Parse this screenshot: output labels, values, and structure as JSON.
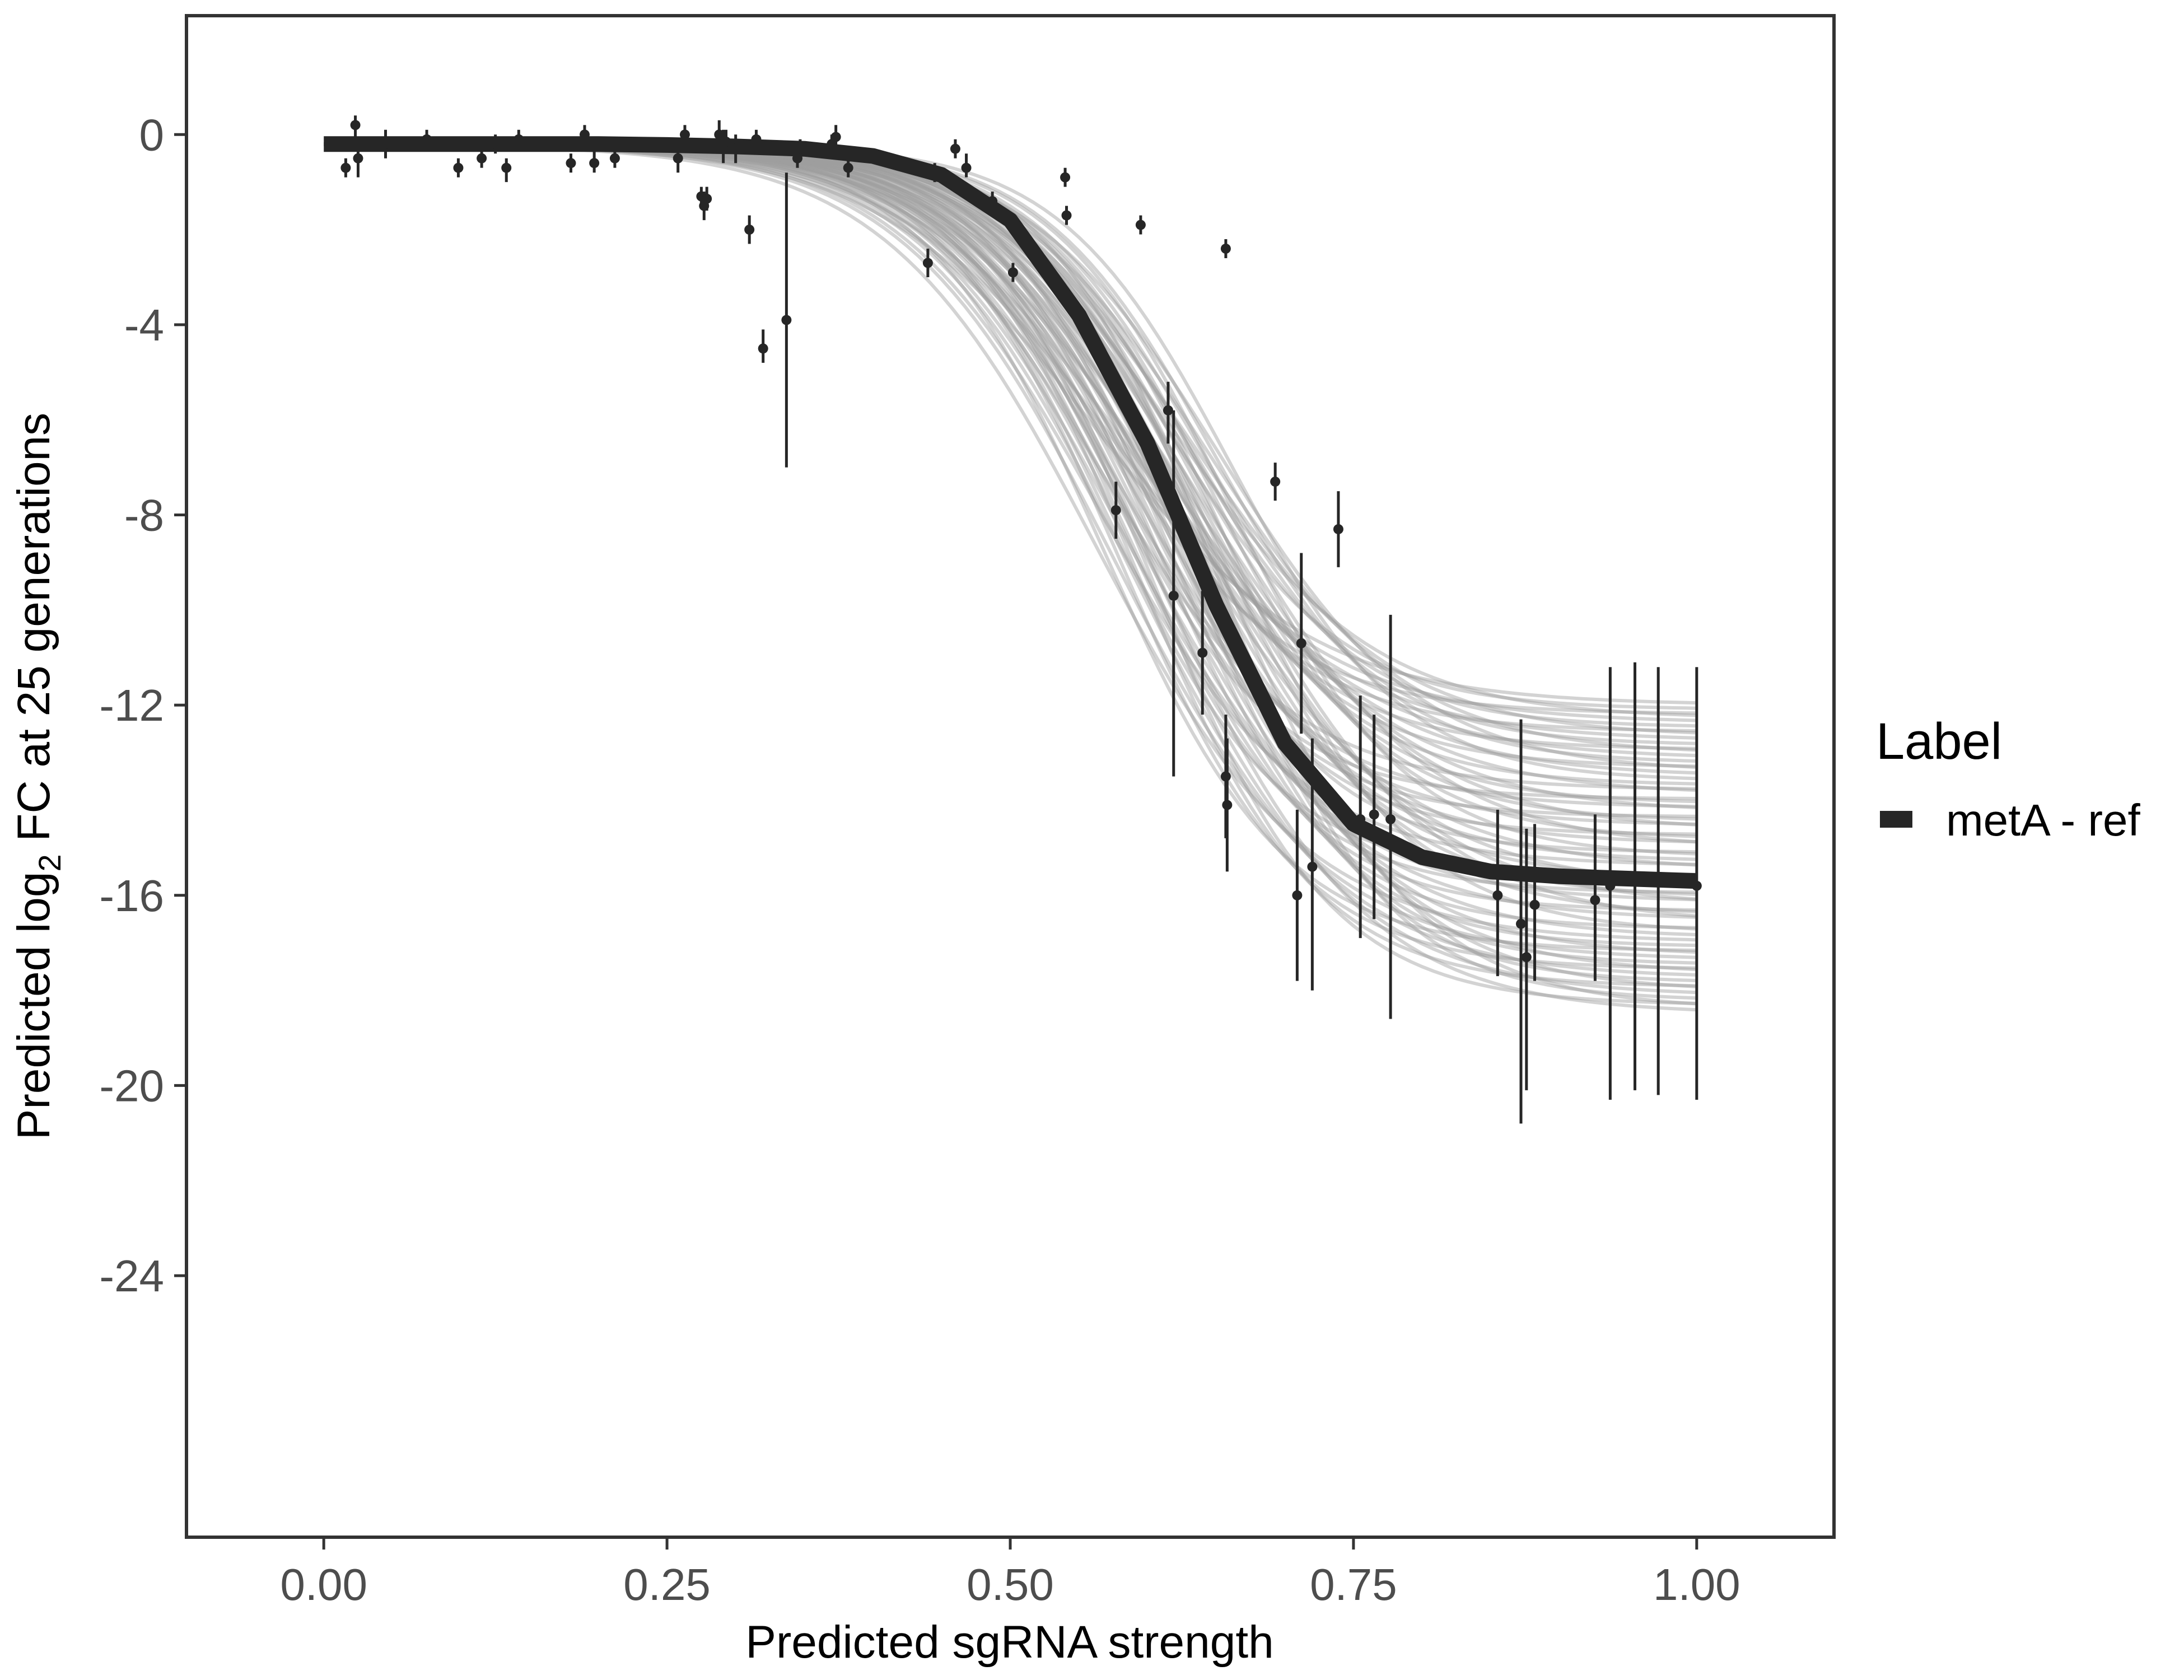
{
  "chart_data": {
    "type": "line",
    "title": "",
    "xlabel": "Predicted sgRNA strength",
    "ylabel": {
      "prefix": "Predicted  log",
      "subscript": "2",
      "suffix": " FC at 25 generations"
    },
    "xlim": [
      -0.1,
      1.1
    ],
    "ylim": [
      -29.5,
      2.5
    ],
    "x_ticks": [
      0.0,
      0.25,
      0.5,
      0.75,
      1.0
    ],
    "x_tick_labels": [
      "0.00",
      "0.25",
      "0.50",
      "0.75",
      "1.00"
    ],
    "y_ticks": [
      0,
      -4,
      -8,
      -12,
      -16,
      -20,
      -24
    ],
    "y_tick_labels": [
      "0",
      "-4",
      "-8",
      "-12",
      "-16",
      "-20",
      "-24"
    ],
    "grid": false,
    "legend": {
      "title": "Label",
      "placement": "right",
      "entries": [
        {
          "label": "metA - ref",
          "color": "#262626"
        }
      ]
    },
    "colors": {
      "fit_line": "#262626",
      "posterior_draws": "#9e9e9e",
      "points": "#262626",
      "axis": "#333333"
    },
    "fit_curve": {
      "name": "metA - ref",
      "x": [
        0.0,
        0.05,
        0.1,
        0.15,
        0.2,
        0.25,
        0.3,
        0.35,
        0.4,
        0.45,
        0.5,
        0.55,
        0.6,
        0.65,
        0.7,
        0.75,
        0.8,
        0.85,
        0.9,
        0.95,
        1.0
      ],
      "y": [
        -0.2,
        -0.2,
        -0.2,
        -0.2,
        -0.2,
        -0.22,
        -0.25,
        -0.3,
        -0.45,
        -0.85,
        -1.8,
        -3.8,
        -6.5,
        -9.9,
        -12.8,
        -14.5,
        -15.2,
        -15.5,
        -15.6,
        -15.65,
        -15.7
      ]
    },
    "posterior_band": {
      "lower_end_y": [
        -0.2,
        -18.5
      ],
      "upper_end_y": [
        -0.2,
        -12.0
      ],
      "midpoint_range": [
        0.56,
        0.66
      ]
    },
    "points": [
      {
        "x": 0.016,
        "y": -0.7,
        "lo": -0.9,
        "hi": -0.5
      },
      {
        "x": 0.023,
        "y": 0.2,
        "lo": -0.1,
        "hi": 0.4
      },
      {
        "x": 0.025,
        "y": -0.5,
        "lo": -0.9,
        "hi": -0.2
      },
      {
        "x": 0.045,
        "y": -0.2,
        "lo": -0.5,
        "hi": 0.1
      },
      {
        "x": 0.075,
        "y": -0.1,
        "lo": -0.3,
        "hi": 0.1
      },
      {
        "x": 0.098,
        "y": -0.7,
        "lo": -0.9,
        "hi": -0.5
      },
      {
        "x": 0.115,
        "y": -0.5,
        "lo": -0.7,
        "hi": -0.3
      },
      {
        "x": 0.125,
        "y": -0.2,
        "lo": -0.4,
        "hi": 0.0
      },
      {
        "x": 0.133,
        "y": -0.7,
        "lo": -1.0,
        "hi": -0.5
      },
      {
        "x": 0.142,
        "y": -0.1,
        "lo": -0.3,
        "hi": 0.1
      },
      {
        "x": 0.18,
        "y": -0.6,
        "lo": -0.8,
        "hi": -0.4
      },
      {
        "x": 0.19,
        "y": 0.0,
        "lo": -0.2,
        "hi": 0.2
      },
      {
        "x": 0.197,
        "y": -0.6,
        "lo": -0.8,
        "hi": -0.3
      },
      {
        "x": 0.212,
        "y": -0.5,
        "lo": -0.7,
        "hi": -0.3
      },
      {
        "x": 0.258,
        "y": -0.5,
        "lo": -0.8,
        "hi": -0.2
      },
      {
        "x": 0.263,
        "y": 0.0,
        "lo": -0.2,
        "hi": 0.2
      },
      {
        "x": 0.275,
        "y": -1.3,
        "lo": -1.5,
        "hi": -1.1
      },
      {
        "x": 0.277,
        "y": -1.5,
        "lo": -1.8,
        "hi": -1.2
      },
      {
        "x": 0.279,
        "y": -1.35,
        "lo": -1.6,
        "hi": -1.1
      },
      {
        "x": 0.288,
        "y": 0.0,
        "lo": -0.3,
        "hi": 0.3
      },
      {
        "x": 0.291,
        "y": -0.2,
        "lo": -0.6,
        "hi": 0.1
      },
      {
        "x": 0.293,
        "y": -0.15,
        "lo": -0.4,
        "hi": 0.1
      },
      {
        "x": 0.3,
        "y": -0.3,
        "lo": -0.6,
        "hi": 0.0
      },
      {
        "x": 0.31,
        "y": -2.0,
        "lo": -2.3,
        "hi": -1.7
      },
      {
        "x": 0.315,
        "y": -0.1,
        "lo": -0.3,
        "hi": 0.1
      },
      {
        "x": 0.32,
        "y": -4.5,
        "lo": -4.8,
        "hi": -4.1
      },
      {
        "x": 0.337,
        "y": -3.9,
        "lo": -7.0,
        "hi": -0.8
      },
      {
        "x": 0.345,
        "y": -0.5,
        "lo": -0.7,
        "hi": -0.2
      },
      {
        "x": 0.347,
        "y": -0.3,
        "lo": -0.5,
        "hi": -0.1
      },
      {
        "x": 0.37,
        "y": -0.2,
        "lo": -0.4,
        "hi": 0.0
      },
      {
        "x": 0.373,
        "y": -0.05,
        "lo": -0.3,
        "hi": 0.2
      },
      {
        "x": 0.382,
        "y": -0.7,
        "lo": -0.9,
        "hi": -0.5
      },
      {
        "x": 0.44,
        "y": -2.7,
        "lo": -3.0,
        "hi": -2.4
      },
      {
        "x": 0.445,
        "y": -0.8,
        "lo": -1.0,
        "hi": -0.6
      },
      {
        "x": 0.46,
        "y": -0.3,
        "lo": -0.5,
        "hi": -0.1
      },
      {
        "x": 0.468,
        "y": -0.7,
        "lo": -0.9,
        "hi": -0.4
      },
      {
        "x": 0.487,
        "y": -1.4,
        "lo": -1.6,
        "hi": -1.2
      },
      {
        "x": 0.502,
        "y": -2.9,
        "lo": -3.1,
        "hi": -2.7
      },
      {
        "x": 0.54,
        "y": -0.9,
        "lo": -1.1,
        "hi": -0.7
      },
      {
        "x": 0.541,
        "y": -1.7,
        "lo": -1.9,
        "hi": -1.5
      },
      {
        "x": 0.577,
        "y": -7.9,
        "lo": -8.5,
        "hi": -7.3
      },
      {
        "x": 0.595,
        "y": -1.9,
        "lo": -2.1,
        "hi": -1.7
      },
      {
        "x": 0.615,
        "y": -5.8,
        "lo": -6.5,
        "hi": -5.2
      },
      {
        "x": 0.619,
        "y": -9.7,
        "lo": -13.5,
        "hi": -5.8
      },
      {
        "x": 0.64,
        "y": -10.9,
        "lo": -12.2,
        "hi": -9.6
      },
      {
        "x": 0.657,
        "y": -2.4,
        "lo": -2.6,
        "hi": -2.2
      },
      {
        "x": 0.657,
        "y": -13.5,
        "lo": -14.8,
        "hi": -12.2
      },
      {
        "x": 0.658,
        "y": -14.1,
        "lo": -15.5,
        "hi": -12.7
      },
      {
        "x": 0.693,
        "y": -7.3,
        "lo": -7.7,
        "hi": -6.9
      },
      {
        "x": 0.709,
        "y": -16.0,
        "lo": -17.8,
        "hi": -14.2
      },
      {
        "x": 0.712,
        "y": -10.7,
        "lo": -12.6,
        "hi": -8.8
      },
      {
        "x": 0.72,
        "y": -15.4,
        "lo": -18.0,
        "hi": -12.7
      },
      {
        "x": 0.739,
        "y": -8.3,
        "lo": -9.1,
        "hi": -7.5
      },
      {
        "x": 0.755,
        "y": -14.4,
        "lo": -16.9,
        "hi": -11.8
      },
      {
        "x": 0.765,
        "y": -14.3,
        "lo": -16.5,
        "hi": -12.2
      },
      {
        "x": 0.777,
        "y": -14.4,
        "lo": -18.6,
        "hi": -10.1
      },
      {
        "x": 0.855,
        "y": -16.0,
        "lo": -17.7,
        "hi": -14.2
      },
      {
        "x": 0.872,
        "y": -16.6,
        "lo": -20.8,
        "hi": -12.3
      },
      {
        "x": 0.876,
        "y": -17.3,
        "lo": -20.1,
        "hi": -14.6
      },
      {
        "x": 0.882,
        "y": -16.2,
        "lo": -17.8,
        "hi": -14.5
      },
      {
        "x": 0.926,
        "y": -16.1,
        "lo": -17.8,
        "hi": -14.3
      },
      {
        "x": 0.937,
        "y": -15.8,
        "lo": -20.3,
        "hi": -11.2
      },
      {
        "x": 0.955,
        "y": -15.6,
        "lo": -20.1,
        "hi": -11.1
      },
      {
        "x": 0.972,
        "y": -15.7,
        "lo": -20.2,
        "hi": -11.2
      },
      {
        "x": 1.0,
        "y": -15.8,
        "lo": -20.3,
        "hi": -11.2
      }
    ]
  }
}
